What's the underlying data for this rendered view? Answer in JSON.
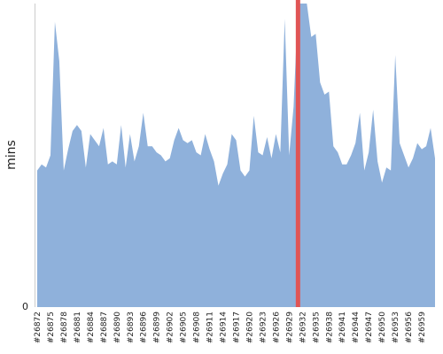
{
  "chart_data": {
    "type": "area",
    "ylabel": "mins",
    "xlabel": "",
    "title": "",
    "y_tick_labels": [
      "0"
    ],
    "ylim": [
      0,
      100
    ],
    "grid": false,
    "legend": "none",
    "colors": {
      "area": "#8fb1db",
      "marker": "#e05555",
      "axis": "#cccccc"
    },
    "x_tick_labels": [
      "#26872",
      "#26875",
      "#26878",
      "#26881",
      "#26884",
      "#26887",
      "#26890",
      "#26893",
      "#26896",
      "#26899",
      "#26902",
      "#26905",
      "#26908",
      "#26911",
      "#26914",
      "#26917",
      "#26920",
      "#26923",
      "#26926",
      "#26929",
      "#26932",
      "#26935",
      "#26938",
      "#26941",
      "#26944",
      "#26947",
      "#26950",
      "#26953",
      "#26956",
      "#26959"
    ],
    "x_start": 26872,
    "values": [
      45,
      47,
      46,
      50,
      94,
      81,
      45,
      52,
      58,
      60,
      58,
      46,
      57,
      55,
      53,
      59,
      47,
      48,
      47,
      60,
      46,
      57,
      48,
      53,
      64,
      53,
      53,
      51,
      50,
      48,
      49,
      55,
      59,
      55,
      54,
      55,
      51,
      50,
      57,
      52,
      48,
      40,
      44,
      47,
      57,
      55,
      45,
      43,
      45,
      63,
      51,
      50,
      56,
      49,
      57,
      51,
      95,
      50,
      66,
      100,
      100,
      100,
      89,
      90,
      74,
      70,
      71,
      53,
      51,
      47,
      47,
      50,
      54,
      64,
      45,
      51,
      65,
      48,
      41,
      46,
      45,
      83,
      54,
      50,
      46,
      49,
      54,
      52,
      53,
      59,
      49
    ],
    "highlight_x": 26931
  }
}
